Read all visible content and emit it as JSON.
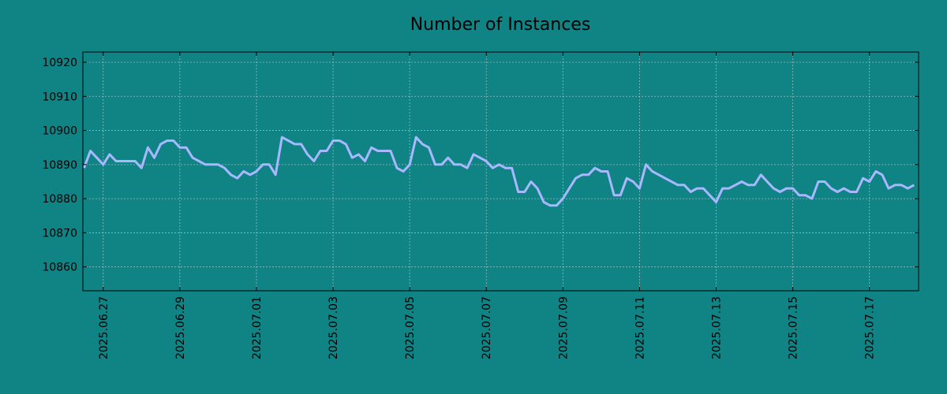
{
  "chart_data": {
    "type": "line",
    "title": "Number of Instances",
    "xlabel": "",
    "ylabel": "",
    "grid": true,
    "x_start": "2025.06.26",
    "x_end": "2025.07.18",
    "x_ticks": [
      "2025.06.27",
      "2025.06.29",
      "2025.07.01",
      "2025.07.03",
      "2025.07.05",
      "2025.07.07",
      "2025.07.09",
      "2025.07.11",
      "2025.07.13",
      "2025.07.15",
      "2025.07.17"
    ],
    "ylim": [
      10853,
      10923
    ],
    "y_ticks": [
      10860,
      10870,
      10880,
      10890,
      10900,
      10910,
      10920
    ],
    "colors": {
      "background": "#108385",
      "line": "#a8b8ff"
    },
    "series": [
      {
        "points": [
          [
            "2025.06.26 12:00",
            10889
          ],
          [
            "2025.06.26 16:00",
            10894
          ],
          [
            "2025.06.26 20:00",
            10892
          ],
          [
            "2025.06.27 00:00",
            10890
          ],
          [
            "2025.06.27 04:00",
            10893
          ],
          [
            "2025.06.27 08:00",
            10891
          ],
          [
            "2025.06.27 12:00",
            10891
          ],
          [
            "2025.06.27 16:00",
            10891
          ],
          [
            "2025.06.27 20:00",
            10891
          ],
          [
            "2025.06.28 00:00",
            10889
          ],
          [
            "2025.06.28 04:00",
            10895
          ],
          [
            "2025.06.28 08:00",
            10892
          ],
          [
            "2025.06.28 12:00",
            10896
          ],
          [
            "2025.06.28 16:00",
            10897
          ],
          [
            "2025.06.28 20:00",
            10897
          ],
          [
            "2025.06.29 00:00",
            10895
          ],
          [
            "2025.06.29 04:00",
            10895
          ],
          [
            "2025.06.29 08:00",
            10892
          ],
          [
            "2025.06.29 12:00",
            10891
          ],
          [
            "2025.06.29 16:00",
            10890
          ],
          [
            "2025.06.29 20:00",
            10890
          ],
          [
            "2025.06.30 00:00",
            10890
          ],
          [
            "2025.06.30 04:00",
            10889
          ],
          [
            "2025.06.30 08:00",
            10887
          ],
          [
            "2025.06.30 12:00",
            10886
          ],
          [
            "2025.06.30 16:00",
            10888
          ],
          [
            "2025.06.30 20:00",
            10887
          ],
          [
            "2025.07.01 00:00",
            10888
          ],
          [
            "2025.07.01 04:00",
            10890
          ],
          [
            "2025.07.01 08:00",
            10890
          ],
          [
            "2025.07.01 12:00",
            10887
          ],
          [
            "2025.07.01 16:00",
            10898
          ],
          [
            "2025.07.01 20:00",
            10897
          ],
          [
            "2025.07.02 00:00",
            10896
          ],
          [
            "2025.07.02 04:00",
            10896
          ],
          [
            "2025.07.02 08:00",
            10893
          ],
          [
            "2025.07.02 12:00",
            10891
          ],
          [
            "2025.07.02 16:00",
            10894
          ],
          [
            "2025.07.02 20:00",
            10894
          ],
          [
            "2025.07.03 00:00",
            10897
          ],
          [
            "2025.07.03 04:00",
            10897
          ],
          [
            "2025.07.03 08:00",
            10896
          ],
          [
            "2025.07.03 12:00",
            10892
          ],
          [
            "2025.07.03 16:00",
            10893
          ],
          [
            "2025.07.03 20:00",
            10891
          ],
          [
            "2025.07.04 00:00",
            10895
          ],
          [
            "2025.07.04 04:00",
            10894
          ],
          [
            "2025.07.04 08:00",
            10894
          ],
          [
            "2025.07.04 12:00",
            10894
          ],
          [
            "2025.07.04 16:00",
            10889
          ],
          [
            "2025.07.04 20:00",
            10888
          ],
          [
            "2025.07.05 00:00",
            10890
          ],
          [
            "2025.07.05 04:00",
            10898
          ],
          [
            "2025.07.05 08:00",
            10896
          ],
          [
            "2025.07.05 12:00",
            10895
          ],
          [
            "2025.07.05 16:00",
            10890
          ],
          [
            "2025.07.05 20:00",
            10890
          ],
          [
            "2025.07.06 00:00",
            10892
          ],
          [
            "2025.07.06 04:00",
            10890
          ],
          [
            "2025.07.06 08:00",
            10890
          ],
          [
            "2025.07.06 12:00",
            10889
          ],
          [
            "2025.07.06 16:00",
            10893
          ],
          [
            "2025.07.06 20:00",
            10892
          ],
          [
            "2025.07.07 00:00",
            10891
          ],
          [
            "2025.07.07 04:00",
            10889
          ],
          [
            "2025.07.07 08:00",
            10890
          ],
          [
            "2025.07.07 12:00",
            10889
          ],
          [
            "2025.07.07 16:00",
            10889
          ],
          [
            "2025.07.07 20:00",
            10882
          ],
          [
            "2025.07.08 00:00",
            10882
          ],
          [
            "2025.07.08 04:00",
            10885
          ],
          [
            "2025.07.08 08:00",
            10883
          ],
          [
            "2025.07.08 12:00",
            10879
          ],
          [
            "2025.07.08 16:00",
            10878
          ],
          [
            "2025.07.08 20:00",
            10878
          ],
          [
            "2025.07.09 00:00",
            10880
          ],
          [
            "2025.07.09 04:00",
            10883
          ],
          [
            "2025.07.09 08:00",
            10886
          ],
          [
            "2025.07.09 12:00",
            10887
          ],
          [
            "2025.07.09 16:00",
            10887
          ],
          [
            "2025.07.09 20:00",
            10889
          ],
          [
            "2025.07.10 00:00",
            10888
          ],
          [
            "2025.07.10 04:00",
            10888
          ],
          [
            "2025.07.10 08:00",
            10881
          ],
          [
            "2025.07.10 12:00",
            10881
          ],
          [
            "2025.07.10 16:00",
            10886
          ],
          [
            "2025.07.10 20:00",
            10885
          ],
          [
            "2025.07.11 00:00",
            10883
          ],
          [
            "2025.07.11 04:00",
            10890
          ],
          [
            "2025.07.11 08:00",
            10888
          ],
          [
            "2025.07.11 12:00",
            10887
          ],
          [
            "2025.07.11 16:00",
            10886
          ],
          [
            "2025.07.11 20:00",
            10885
          ],
          [
            "2025.07.12 00:00",
            10884
          ],
          [
            "2025.07.12 04:00",
            10884
          ],
          [
            "2025.07.12 08:00",
            10882
          ],
          [
            "2025.07.12 12:00",
            10883
          ],
          [
            "2025.07.12 16:00",
            10883
          ],
          [
            "2025.07.12 20:00",
            10881
          ],
          [
            "2025.07.13 00:00",
            10879
          ],
          [
            "2025.07.13 04:00",
            10883
          ],
          [
            "2025.07.13 08:00",
            10883
          ],
          [
            "2025.07.13 12:00",
            10884
          ],
          [
            "2025.07.13 16:00",
            10885
          ],
          [
            "2025.07.13 20:00",
            10884
          ],
          [
            "2025.07.14 00:00",
            10884
          ],
          [
            "2025.07.14 04:00",
            10887
          ],
          [
            "2025.07.14 08:00",
            10885
          ],
          [
            "2025.07.14 12:00",
            10883
          ],
          [
            "2025.07.14 16:00",
            10882
          ],
          [
            "2025.07.14 20:00",
            10883
          ],
          [
            "2025.07.15 00:00",
            10883
          ],
          [
            "2025.07.15 04:00",
            10881
          ],
          [
            "2025.07.15 08:00",
            10881
          ],
          [
            "2025.07.15 12:00",
            10880
          ],
          [
            "2025.07.15 16:00",
            10885
          ],
          [
            "2025.07.15 20:00",
            10885
          ],
          [
            "2025.07.16 00:00",
            10883
          ],
          [
            "2025.07.16 04:00",
            10882
          ],
          [
            "2025.07.16 08:00",
            10883
          ],
          [
            "2025.07.16 12:00",
            10882
          ],
          [
            "2025.07.16 16:00",
            10882
          ],
          [
            "2025.07.16 20:00",
            10886
          ],
          [
            "2025.07.17 00:00",
            10885
          ],
          [
            "2025.07.17 04:00",
            10888
          ],
          [
            "2025.07.17 08:00",
            10887
          ],
          [
            "2025.07.17 12:00",
            10883
          ],
          [
            "2025.07.17 16:00",
            10884
          ],
          [
            "2025.07.17 20:00",
            10884
          ],
          [
            "2025.07.18 00:00",
            10883
          ],
          [
            "2025.07.18 04:00",
            10884
          ]
        ]
      }
    ]
  }
}
